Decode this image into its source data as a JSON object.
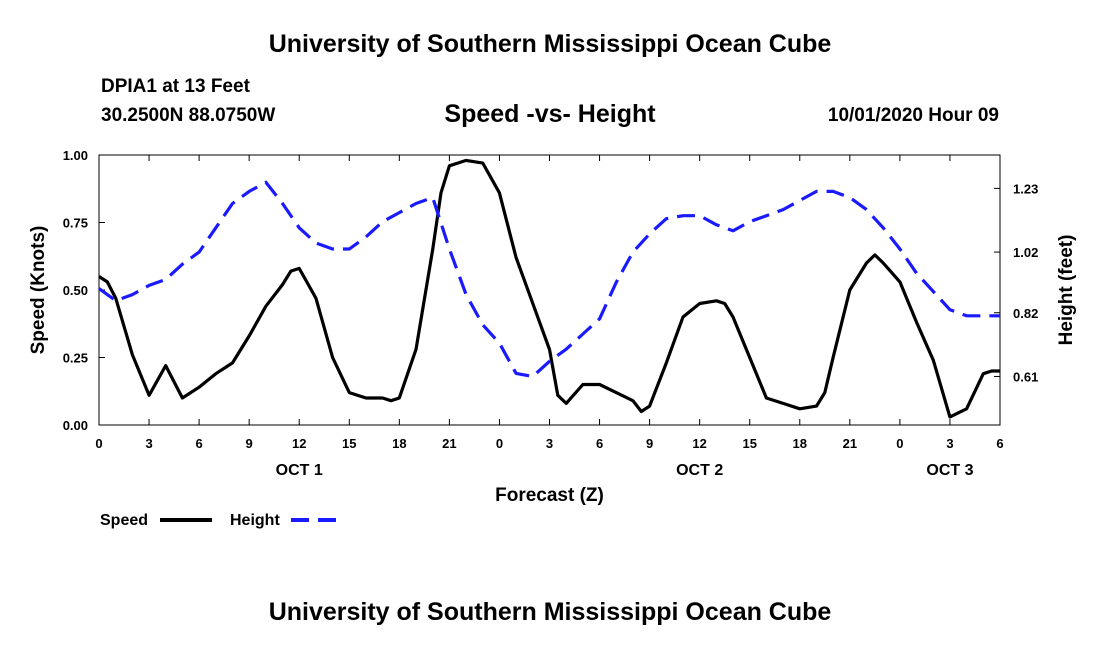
{
  "header": {
    "title": "University of Southern Mississippi Ocean Cube",
    "station": "DPIA1 at 13 Feet",
    "coords": "30.2500N 88.0750W",
    "datetime": "10/01/2020 Hour 09"
  },
  "footer": {
    "title": "University of Southern Mississippi Ocean Cube"
  },
  "chart_data": {
    "type": "line",
    "title": "Speed -vs- Height",
    "xlabel": "Forecast (Z)",
    "ylabel": "Speed (Knots)",
    "y2label": "Height (feet)",
    "xlim": [
      0,
      54
    ],
    "ylim": [
      0,
      1.0
    ],
    "y2lim": [
      0.45,
      1.34
    ],
    "x_ticks": [
      0,
      3,
      6,
      9,
      12,
      15,
      18,
      21,
      24,
      27,
      30,
      33,
      36,
      39,
      42,
      45,
      48,
      51,
      54
    ],
    "x_tick_labels": [
      "0",
      "3",
      "6",
      "9",
      "12",
      "15",
      "18",
      "21",
      "0",
      "3",
      "6",
      "9",
      "12",
      "15",
      "18",
      "21",
      "0",
      "3",
      "6"
    ],
    "y_ticks": [
      0,
      0.25,
      0.5,
      0.75,
      1.0
    ],
    "y_tick_labels": [
      "0.00",
      "0.25",
      "0.50",
      "0.75",
      "1.00"
    ],
    "y2_ticks": [
      0.61,
      0.82,
      1.02,
      1.23
    ],
    "y2_tick_labels": [
      "0.61",
      "0.82",
      "1.02",
      "1.23"
    ],
    "day_labels": [
      {
        "x": 12,
        "label": "OCT 1"
      },
      {
        "x": 36,
        "label": "OCT 2"
      },
      {
        "x": 51,
        "label": "OCT 3"
      }
    ],
    "legend": [
      {
        "name": "Speed",
        "color": "#000000",
        "style": "solid"
      },
      {
        "name": "Height",
        "color": "#1a1aff",
        "style": "dashed"
      }
    ],
    "series": [
      {
        "name": "Speed",
        "axis": "left",
        "color": "#000000",
        "x": [
          0,
          0.5,
          1,
          2,
          3,
          4,
          5,
          6,
          7,
          8,
          9,
          10,
          11,
          11.5,
          12,
          13,
          14,
          15,
          16,
          17,
          17.5,
          18,
          19,
          20,
          20.5,
          21,
          21.5,
          22,
          23,
          24,
          25,
          26,
          27,
          27.5,
          28,
          29,
          30,
          31,
          32,
          32.5,
          33,
          34,
          35,
          36,
          37,
          37.5,
          38,
          39,
          40,
          41,
          42,
          43,
          43.5,
          44,
          45,
          46,
          46.5,
          47,
          48,
          49,
          50,
          51,
          52,
          53,
          53.5,
          54
        ],
        "values": [
          0.55,
          0.53,
          0.47,
          0.26,
          0.11,
          0.22,
          0.1,
          0.14,
          0.19,
          0.23,
          0.33,
          0.44,
          0.52,
          0.57,
          0.58,
          0.47,
          0.25,
          0.12,
          0.1,
          0.1,
          0.09,
          0.1,
          0.28,
          0.65,
          0.86,
          0.96,
          0.97,
          0.98,
          0.97,
          0.86,
          0.62,
          0.45,
          0.28,
          0.11,
          0.08,
          0.15,
          0.15,
          0.12,
          0.09,
          0.05,
          0.07,
          0.23,
          0.4,
          0.45,
          0.46,
          0.45,
          0.4,
          0.25,
          0.1,
          0.08,
          0.06,
          0.07,
          0.12,
          0.25,
          0.5,
          0.6,
          0.63,
          0.6,
          0.53,
          0.38,
          0.24,
          0.03,
          0.06,
          0.19,
          0.2,
          0.2
        ]
      },
      {
        "name": "Height",
        "axis": "right",
        "color": "#1a1aff",
        "x": [
          0,
          0.5,
          1,
          2,
          3,
          4,
          5,
          6,
          7,
          8,
          9,
          10,
          11,
          12,
          13,
          14,
          15,
          16,
          17,
          18,
          19,
          20,
          21,
          22,
          23,
          24,
          25,
          26,
          27,
          28,
          29,
          30,
          31,
          32,
          33,
          34,
          35,
          36,
          37,
          38,
          39,
          40,
          41,
          42,
          43,
          44,
          45,
          46,
          47,
          48,
          49,
          50,
          51,
          52,
          53,
          54
        ],
        "values": [
          0.9,
          0.88,
          0.86,
          0.88,
          0.91,
          0.93,
          0.98,
          1.02,
          1.1,
          1.18,
          1.22,
          1.25,
          1.18,
          1.1,
          1.05,
          1.03,
          1.03,
          1.07,
          1.12,
          1.15,
          1.18,
          1.2,
          1.03,
          0.88,
          0.78,
          0.72,
          0.62,
          0.61,
          0.66,
          0.7,
          0.75,
          0.8,
          0.92,
          1.02,
          1.08,
          1.13,
          1.14,
          1.14,
          1.11,
          1.09,
          1.12,
          1.14,
          1.16,
          1.19,
          1.22,
          1.22,
          1.2,
          1.16,
          1.1,
          1.03,
          0.95,
          0.89,
          0.83,
          0.81,
          0.81,
          0.81
        ]
      }
    ]
  }
}
